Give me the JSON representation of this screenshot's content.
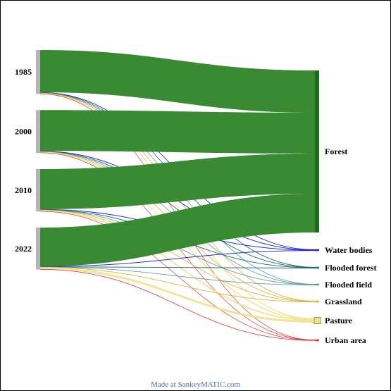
{
  "credit": "Made at SankeyMATIC.com",
  "colors": {
    "source_node": "#b4b4b4",
    "Forest": "#1a6b1a",
    "forest_flow": "#3a8a34",
    "Water bodies": "#2323cc",
    "Flooded forest": "#1f6e6e",
    "Flooded field": "#5a9aa0",
    "Grassland": "#d6b84a",
    "Pasture": "#f0e08c",
    "Urban area": "#d83a3a"
  },
  "chart_data": {
    "type": "sankey",
    "sources": [
      "1985",
      "2000",
      "2010",
      "2022"
    ],
    "targets": [
      "Forest",
      "Water bodies",
      "Flooded forest",
      "Flooded field",
      "Grassland",
      "Pasture",
      "Urban area"
    ],
    "flows": [
      {
        "source": "1985",
        "target": "Forest",
        "value": 60
      },
      {
        "source": "1985",
        "target": "Water bodies",
        "value": 0.4
      },
      {
        "source": "1985",
        "target": "Flooded forest",
        "value": 0.4
      },
      {
        "source": "1985",
        "target": "Flooded field",
        "value": 0.3
      },
      {
        "source": "1985",
        "target": "Grassland",
        "value": 0.4
      },
      {
        "source": "1985",
        "target": "Pasture",
        "value": 0.6
      },
      {
        "source": "1985",
        "target": "Urban area",
        "value": 0.2
      },
      {
        "source": "2000",
        "target": "Forest",
        "value": 58
      },
      {
        "source": "2000",
        "target": "Water bodies",
        "value": 0.4
      },
      {
        "source": "2000",
        "target": "Flooded forest",
        "value": 0.4
      },
      {
        "source": "2000",
        "target": "Flooded field",
        "value": 0.3
      },
      {
        "source": "2000",
        "target": "Grassland",
        "value": 0.4
      },
      {
        "source": "2000",
        "target": "Pasture",
        "value": 1.0
      },
      {
        "source": "2000",
        "target": "Urban area",
        "value": 0.2
      },
      {
        "source": "2010",
        "target": "Forest",
        "value": 57
      },
      {
        "source": "2010",
        "target": "Water bodies",
        "value": 0.4
      },
      {
        "source": "2010",
        "target": "Flooded forest",
        "value": 0.4
      },
      {
        "source": "2010",
        "target": "Flooded field",
        "value": 0.3
      },
      {
        "source": "2010",
        "target": "Grassland",
        "value": 0.4
      },
      {
        "source": "2010",
        "target": "Pasture",
        "value": 1.4
      },
      {
        "source": "2010",
        "target": "Urban area",
        "value": 0.2
      },
      {
        "source": "2022",
        "target": "Forest",
        "value": 55
      },
      {
        "source": "2022",
        "target": "Water bodies",
        "value": 0.4
      },
      {
        "source": "2022",
        "target": "Flooded forest",
        "value": 0.4
      },
      {
        "source": "2022",
        "target": "Flooded field",
        "value": 0.3
      },
      {
        "source": "2022",
        "target": "Grassland",
        "value": 0.4
      },
      {
        "source": "2022",
        "target": "Pasture",
        "value": 2.6
      },
      {
        "source": "2022",
        "target": "Urban area",
        "value": 0.3
      }
    ]
  }
}
